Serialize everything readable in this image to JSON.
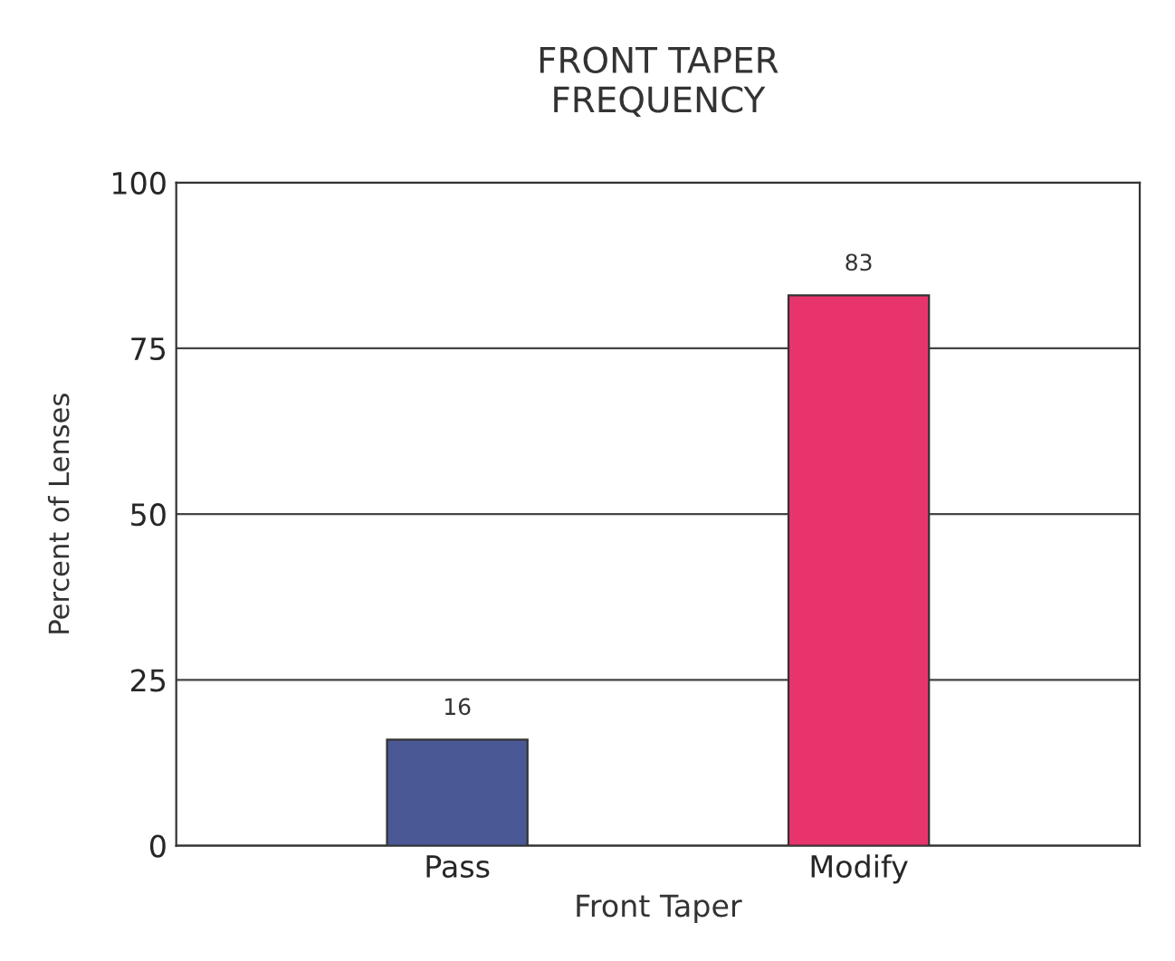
{
  "chart_data": {
    "type": "bar",
    "title": "FRONT TAPER\nFREQUENCY",
    "xlabel": "Front Taper",
    "ylabel": "Percent of Lenses",
    "categories": [
      "Pass",
      "Modify"
    ],
    "values": [
      16,
      83
    ],
    "colors": [
      "#4a5896",
      "#e8346c"
    ],
    "ylim": [
      0,
      100
    ],
    "yticks": [
      0,
      25,
      50,
      75,
      100
    ],
    "grid": "y",
    "data_labels": true
  }
}
